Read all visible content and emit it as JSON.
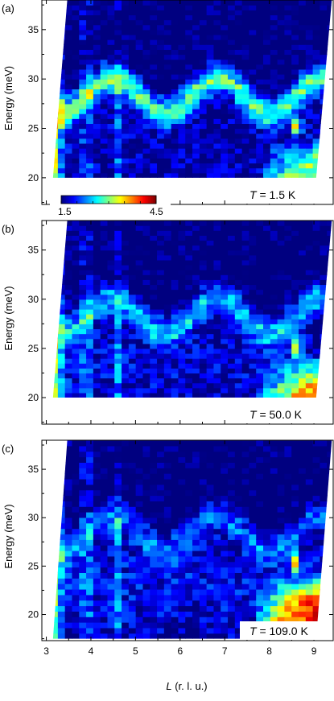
{
  "chart_data": {
    "type": "heatmap",
    "xlabel_var": "L",
    "xlabel_unit": " (r. l. u.)",
    "ylabel": "Energy (meV)",
    "xlim": [
      2.9,
      9.45
    ],
    "ylim": [
      17.3,
      38
    ],
    "x_ticks": [
      3,
      4,
      5,
      6,
      7,
      8,
      9
    ],
    "y_ticks": [
      20,
      25,
      30,
      35
    ],
    "colorbar": {
      "min": 1.5,
      "max": 4.5,
      "min_label": "1.5",
      "max_label": "4.5",
      "colormap": "jet"
    },
    "panels": [
      {
        "label": "(a)",
        "temperature_var": "T",
        "temperature_value": " = 1.5 K",
        "E_min": 20,
        "ridge_strength": 1.0,
        "low_L_strength": 1.2,
        "high_corner_strength": 0.9
      },
      {
        "label": "(b)",
        "temperature_var": "T",
        "temperature_value": " = 50.0 K",
        "E_min": 20,
        "ridge_strength": 0.65,
        "low_L_strength": 1.0,
        "high_corner_strength": 1.1
      },
      {
        "label": "(c)",
        "temperature_var": "T",
        "temperature_value": " = 109.0 K",
        "E_min": 17.5,
        "ridge_strength": 0.45,
        "low_L_strength": 0.9,
        "high_corner_strength": 1.4
      }
    ]
  }
}
